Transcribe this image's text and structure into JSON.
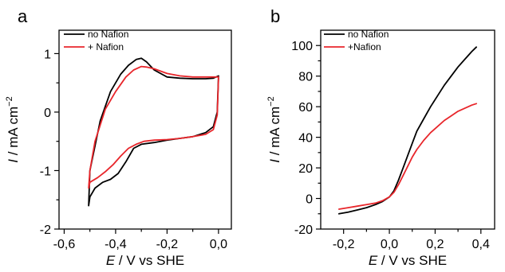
{
  "chart_data": [
    {
      "type": "line",
      "panel": "a",
      "xlabel_italic": "E",
      "xlabel_rest": " / V vs SHE",
      "ylabel_italic": "I",
      "ylabel_rest": " / mA cm",
      "ylabel_sup": "−2",
      "xlim": [
        -0.62,
        0.05
      ],
      "ylim": [
        -2.0,
        1.4
      ],
      "xticks": [
        -0.6,
        -0.4,
        -0.2,
        0.0
      ],
      "xtick_labels": [
        "-0,6",
        "-0,4",
        "-0,2",
        "0,0"
      ],
      "yticks": [
        -2,
        -1,
        0,
        1
      ],
      "ytick_labels": [
        "-2",
        "-1",
        "0",
        "1"
      ],
      "legend": {
        "position": "top-left",
        "entries": [
          "no Nafion",
          "+ Nafion"
        ]
      },
      "series": [
        {
          "name": "no Nafion",
          "color": "#000000",
          "x": [
            0.0,
            -0.02,
            -0.05,
            -0.1,
            -0.15,
            -0.2,
            -0.25,
            -0.28,
            -0.3,
            -0.32,
            -0.35,
            -0.38,
            -0.42,
            -0.46,
            -0.5,
            -0.505,
            -0.5,
            -0.48,
            -0.45,
            -0.42,
            -0.39,
            -0.36,
            -0.33,
            -0.3,
            -0.25,
            -0.2,
            -0.15,
            -0.1,
            -0.05,
            -0.02,
            -0.005,
            0.0
          ],
          "y": [
            0.62,
            0.58,
            0.57,
            0.57,
            0.58,
            0.6,
            0.72,
            0.86,
            0.92,
            0.9,
            0.8,
            0.65,
            0.35,
            -0.15,
            -1.0,
            -1.6,
            -1.45,
            -1.3,
            -1.2,
            -1.15,
            -1.05,
            -0.85,
            -0.62,
            -0.55,
            -0.52,
            -0.48,
            -0.45,
            -0.42,
            -0.35,
            -0.25,
            0.0,
            0.62
          ]
        },
        {
          "name": "+ Nafion",
          "color": "#e8262b",
          "x": [
            0.0,
            -0.02,
            -0.05,
            -0.1,
            -0.15,
            -0.2,
            -0.25,
            -0.28,
            -0.3,
            -0.33,
            -0.36,
            -0.4,
            -0.44,
            -0.48,
            -0.5,
            -0.505,
            -0.5,
            -0.47,
            -0.44,
            -0.41,
            -0.38,
            -0.35,
            -0.32,
            -0.29,
            -0.25,
            -0.2,
            -0.15,
            -0.1,
            -0.05,
            -0.02,
            -0.005,
            0.0
          ],
          "y": [
            0.6,
            0.6,
            0.6,
            0.6,
            0.62,
            0.66,
            0.74,
            0.77,
            0.78,
            0.72,
            0.6,
            0.35,
            0.05,
            -0.5,
            -1.0,
            -1.3,
            -1.2,
            -1.12,
            -1.02,
            -0.9,
            -0.75,
            -0.62,
            -0.55,
            -0.5,
            -0.48,
            -0.47,
            -0.45,
            -0.42,
            -0.38,
            -0.3,
            -0.05,
            0.58
          ]
        }
      ]
    },
    {
      "type": "line",
      "panel": "b",
      "xlabel_italic": "E",
      "xlabel_rest": " / V vs SHE",
      "ylabel_italic": "I",
      "ylabel_rest": " / mA cm",
      "ylabel_sup": "−2",
      "xlim": [
        -0.3,
        0.46
      ],
      "ylim": [
        -20,
        110
      ],
      "xticks": [
        -0.2,
        0.0,
        0.2,
        0.4
      ],
      "xtick_labels": [
        "-0,2",
        "0,0",
        "0,2",
        "0,4"
      ],
      "yticks": [
        -20,
        0,
        20,
        40,
        60,
        80,
        100
      ],
      "ytick_labels": [
        "-20",
        "0",
        "20",
        "40",
        "60",
        "80",
        "100"
      ],
      "legend": {
        "position": "top-left",
        "entries": [
          "no Nafion",
          "+Nafion"
        ]
      },
      "series": [
        {
          "name": "no Nafion",
          "color": "#000000",
          "x": [
            -0.22,
            -0.18,
            -0.14,
            -0.1,
            -0.06,
            -0.03,
            0.0,
            0.02,
            0.04,
            0.06,
            0.08,
            0.1,
            0.12,
            0.15,
            0.18,
            0.21,
            0.24,
            0.27,
            0.3,
            0.33,
            0.36,
            0.38
          ],
          "y": [
            -10,
            -9,
            -7.5,
            -6,
            -4,
            -2,
            1,
            5,
            12,
            20,
            28,
            36,
            44,
            52,
            60,
            67,
            74,
            80,
            86,
            91,
            96,
            99
          ]
        },
        {
          "name": "+Nafion",
          "color": "#e8262b",
          "x": [
            -0.22,
            -0.18,
            -0.14,
            -0.1,
            -0.06,
            -0.03,
            0.0,
            0.02,
            0.04,
            0.06,
            0.08,
            0.1,
            0.12,
            0.15,
            0.18,
            0.21,
            0.24,
            0.27,
            0.3,
            0.33,
            0.36,
            0.38
          ],
          "y": [
            -7,
            -6,
            -5,
            -4,
            -3,
            -1.5,
            1,
            4,
            9,
            15,
            21,
            27,
            32,
            38,
            43,
            47,
            51,
            54,
            57,
            59,
            61,
            62
          ]
        }
      ]
    }
  ]
}
